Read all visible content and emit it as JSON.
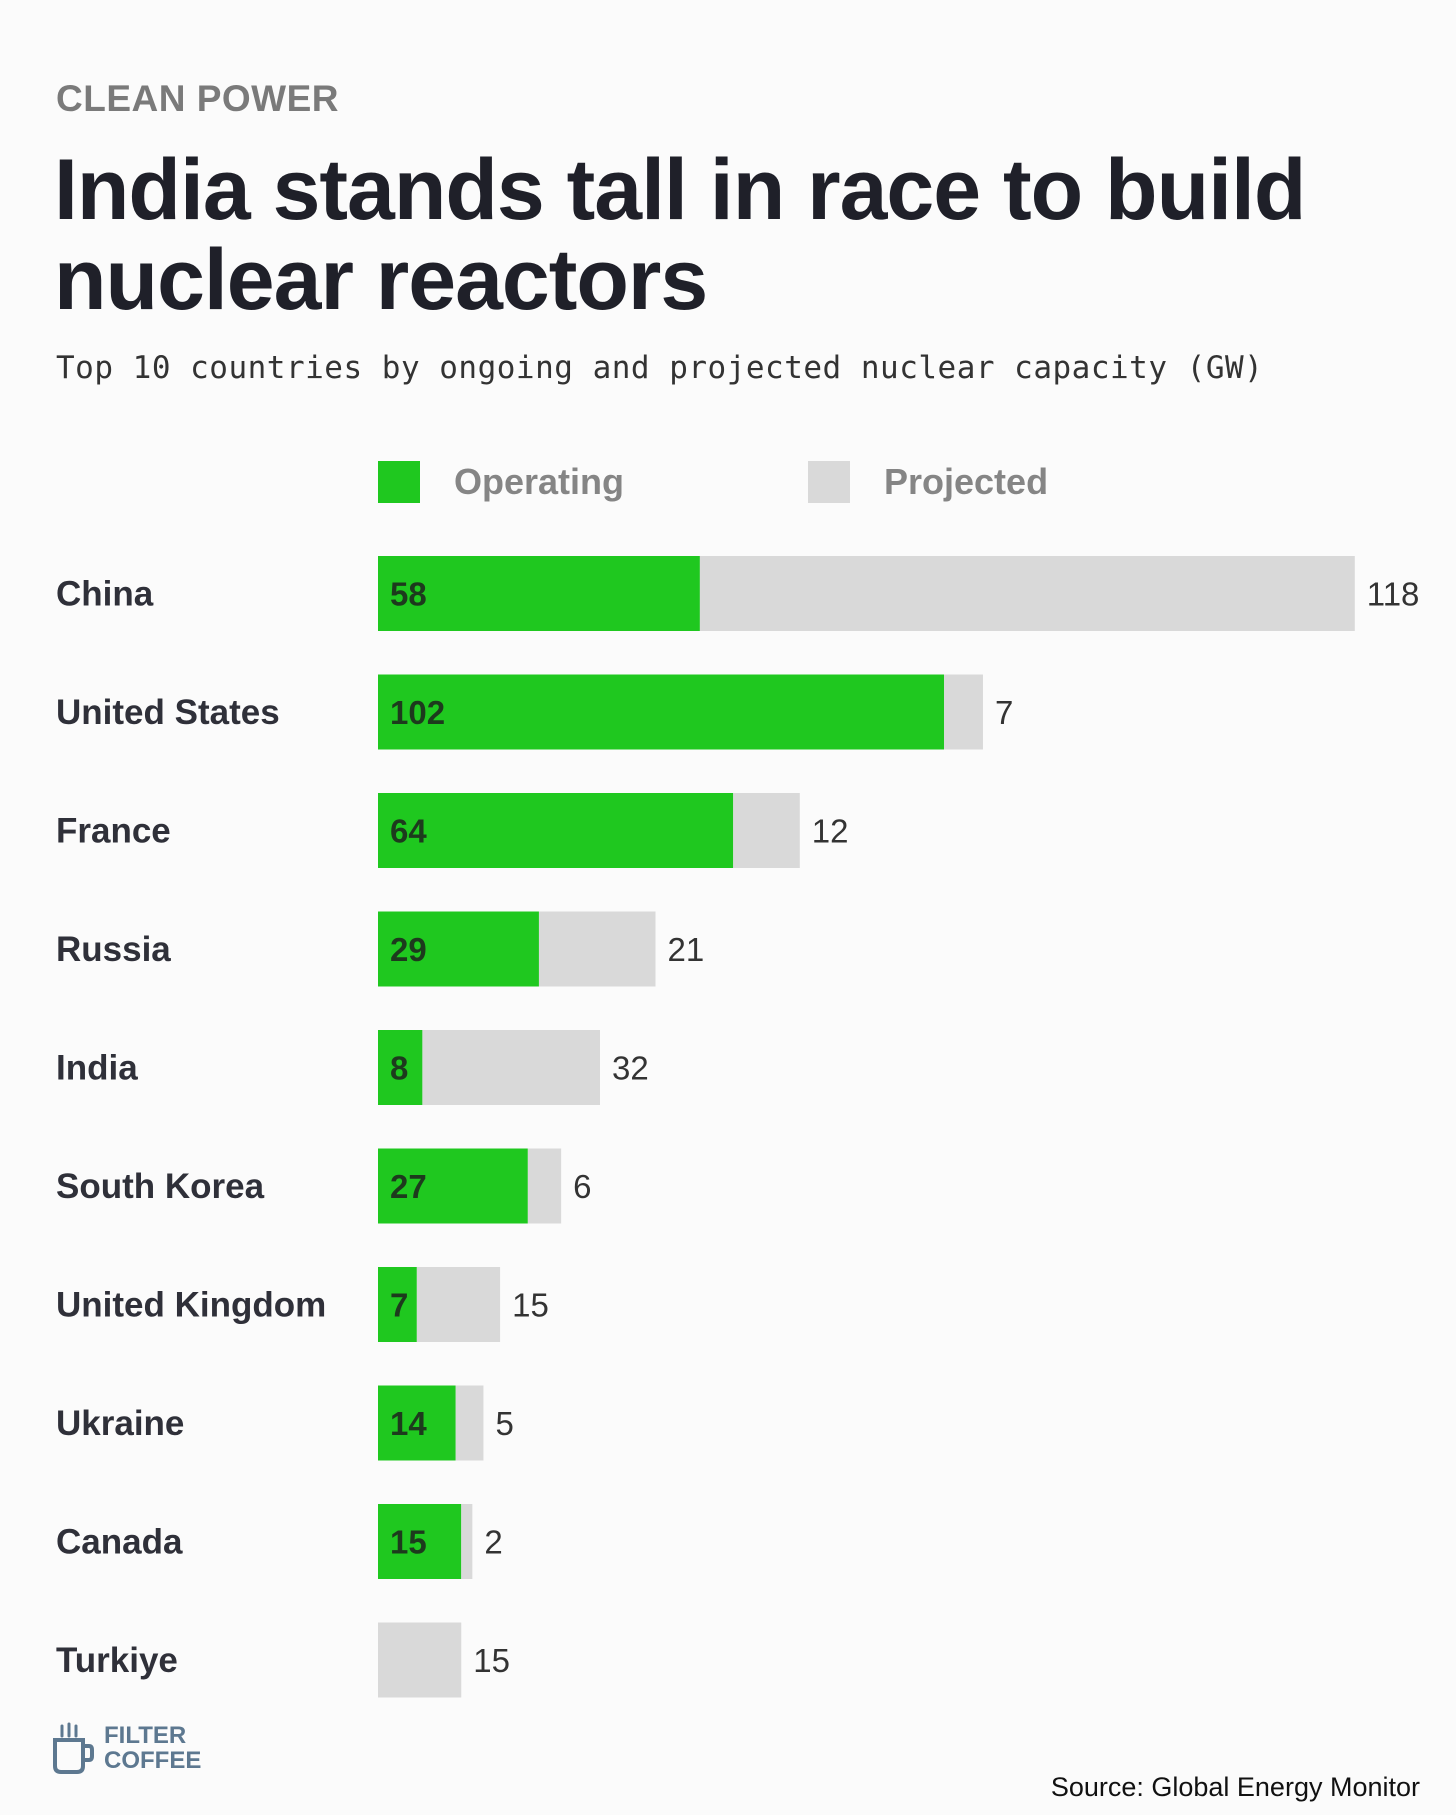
{
  "kicker": "CLEAN POWER",
  "title": "India stands tall in race to build nuclear reactors",
  "subtitle": "Top 10 countries by ongoing and projected nuclear capacity (GW)",
  "legend": {
    "operating": "Operating",
    "projected": "Projected"
  },
  "colors": {
    "operating": "#1fc81f",
    "projected": "#d9d9d9"
  },
  "chart_data": {
    "type": "bar",
    "orientation": "horizontal",
    "stacked": true,
    "title": "India stands tall in race to build nuclear reactors",
    "subtitle": "Top 10 countries by ongoing and projected nuclear capacity (GW)",
    "legend_position": "top",
    "grid": false,
    "categories": [
      "China",
      "United States",
      "France",
      "Russia",
      "India",
      "South Korea",
      "United Kingdom",
      "Ukraine",
      "Canada",
      "Turkiye"
    ],
    "series": [
      {
        "name": "Operating",
        "values": [
          58,
          102,
          64,
          29,
          8,
          27,
          7,
          14,
          15,
          0
        ]
      },
      {
        "name": "Projected",
        "values": [
          118,
          7,
          12,
          21,
          32,
          6,
          15,
          5,
          2,
          15
        ]
      }
    ]
  },
  "logo": {
    "icon": "coffee-cup-icon",
    "line1": "FILTER",
    "line2": "COFFEE"
  },
  "source": "Source: Global Energy Monitor"
}
